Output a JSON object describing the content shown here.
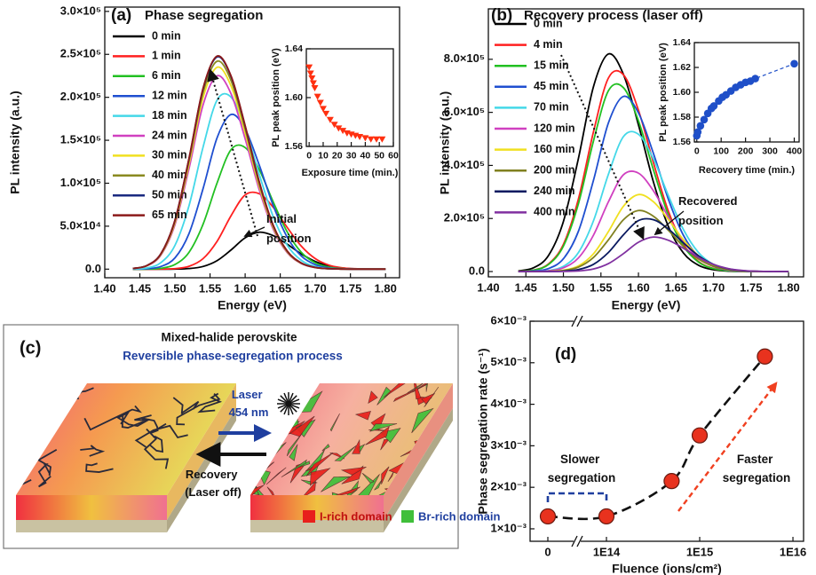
{
  "chart_data": [
    {
      "type": "line",
      "label": "(a)",
      "title": "Phase segregation",
      "xlabel": "Energy (eV)",
      "ylabel": "PL intensity (a.u.)",
      "x": [
        1.44,
        1.46,
        1.48,
        1.5,
        1.52,
        1.54,
        1.56,
        1.58,
        1.6,
        1.62,
        1.64,
        1.66,
        1.68,
        1.7,
        1.72,
        1.74,
        1.76,
        1.78,
        1.8
      ],
      "xlim": [
        1.4,
        1.82
      ],
      "xticks": [
        {
          "value": 1.4,
          "label": "1.40"
        },
        1.45,
        {
          "value": 1.5,
          "label": "1.50"
        },
        1.55,
        {
          "value": 1.6,
          "label": "1.60"
        },
        1.65,
        {
          "value": 1.7,
          "label": "1.70"
        },
        1.75,
        {
          "value": 1.8,
          "label": "1.80"
        }
      ],
      "ylim": [
        -10000,
        305000
      ],
      "yticks": [
        {
          "value": 0,
          "label": "0.0"
        },
        {
          "value": 50000,
          "label": "5.0×10⁴"
        },
        {
          "value": 100000,
          "label": "1.0×10⁵"
        },
        {
          "value": 150000,
          "label": "1.5×10⁵"
        },
        {
          "value": 200000,
          "label": "2.0×10⁵"
        },
        {
          "value": 250000,
          "label": "2.5×10⁵"
        },
        {
          "value": 300000,
          "label": "3.0×10⁵"
        }
      ],
      "legend": "upper left",
      "annotation": "Initial position",
      "series": [
        {
          "name": "0 min",
          "color": "#000000",
          "values": [
            0,
            0,
            0,
            100,
            700,
            3100,
            9900,
            22400,
            36500,
            43000,
            39000,
            29000,
            17700,
            8900,
            3700,
            1200,
            300,
            100,
            0
          ]
        },
        {
          "name": "1 min",
          "color": "#ff2020",
          "values": [
            0,
            0,
            100,
            600,
            3300,
            12200,
            32400,
            62300,
            86400,
            87800,
            72000,
            48500,
            26800,
            12200,
            4500,
            1400,
            400,
            100,
            0
          ]
        },
        {
          "name": "6 min",
          "color": "#22c022",
          "values": [
            0,
            100,
            1000,
            5400,
            19600,
            52200,
            100300,
            139200,
            141500,
            116000,
            78200,
            43200,
            19600,
            7300,
            2200,
            600,
            100,
            0,
            0
          ]
        },
        {
          "name": "12 min",
          "color": "#1f4fd0",
          "values": [
            100,
            500,
            3100,
            13100,
            41400,
            93600,
            152800,
            180000,
            163100,
            121300,
            74000,
            37100,
            15300,
            5200,
            1400,
            400,
            100,
            0,
            0
          ]
        },
        {
          "name": "18 min",
          "color": "#44d8e8",
          "values": [
            200,
            1400,
            7600,
            27700,
            73800,
            141900,
            196800,
            200100,
            164000,
            110500,
            61100,
            27700,
            10300,
            3100,
            800,
            200,
            0,
            0,
            0
          ]
        },
        {
          "name": "24 min",
          "color": "#d040c0",
          "values": [
            700,
            3800,
            16400,
            51800,
            117000,
            191000,
            225000,
            203900,
            151700,
            92500,
            46400,
            19100,
            6500,
            1800,
            500,
            100,
            0,
            0,
            0
          ]
        },
        {
          "name": "30 min",
          "color": "#f0e020",
          "values": [
            700,
            4000,
            17100,
            54100,
            122200,
            199500,
            235000,
            213000,
            158400,
            96600,
            48500,
            20000,
            6800,
            1900,
            500,
            100,
            0,
            0,
            0
          ]
        },
        {
          "name": "40 min",
          "color": "#8a8a20",
          "values": [
            800,
            4100,
            17600,
            55700,
            125800,
            205400,
            242000,
            219300,
            163200,
            99500,
            49900,
            20500,
            7000,
            1900,
            500,
            100,
            0,
            0,
            0
          ]
        },
        {
          "name": "50 min",
          "color": "#1a2a80",
          "values": [
            800,
            4200,
            18000,
            56900,
            128400,
            209700,
            247000,
            223800,
            166500,
            101500,
            50900,
            21000,
            7100,
            2000,
            500,
            100,
            0,
            0,
            0
          ]
        },
        {
          "name": "65 min",
          "color": "#8b1a1a",
          "values": [
            800,
            4200,
            18100,
            57100,
            129000,
            210500,
            248000,
            224700,
            167200,
            102000,
            51100,
            21100,
            7200,
            2000,
            600,
            100,
            0,
            0,
            0
          ]
        }
      ]
    },
    {
      "type": "scatter",
      "xlabel": "Exposure time (min.)",
      "ylabel": "PL peak position (eV)",
      "marker": "triangle",
      "color": "#ff3010",
      "x": [
        0,
        1,
        2,
        3,
        4,
        6,
        8,
        10,
        12,
        15,
        18,
        21,
        24,
        27,
        30,
        33,
        36,
        40,
        44,
        48,
        52
      ],
      "values": [
        1.625,
        1.62,
        1.616,
        1.612,
        1.608,
        1.601,
        1.596,
        1.591,
        1.587,
        1.582,
        1.578,
        1.575,
        1.573,
        1.571,
        1.57,
        1.569,
        1.568,
        1.567,
        1.566,
        1.566,
        1.566
      ],
      "xlim": [
        -2,
        60
      ],
      "xticks": [
        0,
        10,
        20,
        30,
        40,
        50,
        60
      ],
      "ylim": [
        1.56,
        1.64
      ],
      "yticks": [
        1.56,
        {
          "value": 1.6,
          "label": "1.60"
        },
        1.64
      ]
    },
    {
      "type": "line",
      "label": "(b)",
      "title": "Recovery process (laser off)",
      "xlabel": "Energy (eV)",
      "ylabel": "PL intensity (a.u.)",
      "x": [
        1.44,
        1.46,
        1.48,
        1.5,
        1.52,
        1.54,
        1.56,
        1.58,
        1.6,
        1.62,
        1.64,
        1.66,
        1.68,
        1.7,
        1.72,
        1.74,
        1.76,
        1.78,
        1.8
      ],
      "xlim": [
        1.4,
        1.82
      ],
      "xticks": [
        {
          "value": 1.4,
          "label": "1.40"
        },
        1.45,
        {
          "value": 1.5,
          "label": "1.50"
        },
        1.55,
        {
          "value": 1.6,
          "label": "1.60"
        },
        1.65,
        {
          "value": 1.7,
          "label": "1.70"
        },
        1.75,
        {
          "value": 1.8,
          "label": "1.80"
        }
      ],
      "ylim": [
        -20000,
        990000
      ],
      "yticks": [
        {
          "value": 0,
          "label": "0.0"
        },
        {
          "value": 200000,
          "label": "2.0×10⁵"
        },
        {
          "value": 400000,
          "label": "4.0×10⁵"
        },
        {
          "value": 600000,
          "label": "6.0×10⁵"
        },
        {
          "value": 800000,
          "label": "8.0×10⁵"
        }
      ],
      "legend": "upper left",
      "annotation": "Recovered position",
      "series": [
        {
          "name": "0 min",
          "color": "#000000",
          "values": [
            2500,
            13900,
            59900,
            188600,
            426400,
            696200,
            820000,
            742900,
            552700,
            337000,
            168900,
            69700,
            23800,
            6600,
            1600,
            400,
            0,
            0,
            0
          ]
        },
        {
          "name": "4 min",
          "color": "#ff2020",
          "values": [
            800,
            5300,
            28100,
            102600,
            273600,
            525900,
            729600,
            741800,
            608000,
            409600,
            226500,
            102600,
            38000,
            11400,
            3000,
            800,
            0,
            0,
            0
          ]
        },
        {
          "name": "15 min",
          "color": "#22c022",
          "values": [
            700,
            5000,
            26300,
            95800,
            255600,
            491300,
            681600,
            693000,
            568000,
            382700,
            211600,
            95800,
            35500,
            10700,
            2800,
            700,
            0,
            0,
            0
          ]
        },
        {
          "name": "45 min",
          "color": "#1f4fd0",
          "values": [
            200,
            2000,
            11200,
            48200,
            151800,
            343200,
            560300,
            660000,
            598000,
            444800,
            271300,
            136000,
            56100,
            19100,
            5300,
            1300,
            300,
            0,
            0
          ]
        },
        {
          "name": "70 min",
          "color": "#44d8e8",
          "values": [
            200,
            500,
            3700,
            19600,
            71600,
            190800,
            366800,
            508800,
            517300,
            424000,
            285700,
            157900,
            71600,
            26500,
            8000,
            2100,
            500,
            0,
            0
          ]
        },
        {
          "name": "120 min",
          "color": "#d040c0",
          "values": [
            100,
            400,
            2700,
            14100,
            51300,
            136800,
            263000,
            364800,
            370900,
            304000,
            204800,
            113200,
            51300,
            19000,
            5700,
            1500,
            400,
            0,
            0
          ]
        },
        {
          "name": "160 min",
          "color": "#f0e020",
          "values": [
            0,
            100,
            900,
            4900,
            21200,
            66700,
            150800,
            246200,
            290000,
            262700,
            195500,
            119200,
            59700,
            24700,
            8400,
            2300,
            600,
            100,
            0
          ]
        },
        {
          "name": "200 min",
          "color": "#808020",
          "values": [
            0,
            100,
            700,
            3900,
            16800,
            52900,
            119600,
            195300,
            230000,
            208400,
            155000,
            94500,
            47400,
            19600,
            6700,
            1800,
            500,
            100,
            0
          ]
        },
        {
          "name": "240 min",
          "color": "#0a1a60",
          "values": [
            0,
            0,
            200,
            1400,
            7400,
            27000,
            72000,
            138400,
            192000,
            195200,
            160000,
            107800,
            59600,
            27000,
            10000,
            3000,
            800,
            200,
            0
          ]
        },
        {
          "name": "400 min",
          "color": "#8030a0",
          "values": [
            0,
            0,
            0,
            400,
            2200,
            9500,
            29900,
            67600,
            110400,
            130000,
            117800,
            87600,
            53400,
            26800,
            11100,
            3800,
            1000,
            300,
            0
          ]
        }
      ]
    },
    {
      "type": "scatter",
      "xlabel": "Recovery time (min.)",
      "ylabel": "PL peak position (eV)",
      "marker": "circle",
      "color": "#1f4fc8",
      "line": "dashed",
      "x": [
        0,
        4,
        15,
        30,
        45,
        60,
        70,
        90,
        105,
        120,
        140,
        160,
        180,
        200,
        220,
        240,
        400
      ],
      "values": [
        1.565,
        1.568,
        1.573,
        1.578,
        1.583,
        1.587,
        1.589,
        1.593,
        1.596,
        1.598,
        1.601,
        1.604,
        1.606,
        1.608,
        1.609,
        1.611,
        1.623
      ],
      "xlim": [
        -10,
        420
      ],
      "xticks": [
        0,
        100,
        200,
        300,
        400
      ],
      "ylim": [
        1.56,
        1.64
      ],
      "yticks": [
        1.56,
        1.58,
        {
          "value": 1.6,
          "label": "1.60"
        },
        1.62,
        1.64
      ]
    },
    {
      "type": "scatter",
      "label": "(d)",
      "xlabel": "Fluence (ions/cm²)",
      "ylabel": "Phase segregation rate (s⁻¹)",
      "marker": "circle",
      "color": "#e8321e",
      "line": "dashed",
      "xscale": "log",
      "xbreak": true,
      "x": [
        0,
        100000000000000.0,
        500000000000000.0,
        1000000000000000.0,
        5000000000000000.0
      ],
      "values": [
        0.0013,
        0.0013,
        0.00215,
        0.00325,
        0.00515
      ],
      "xlim": [
        0,
        1.3e+16
      ],
      "xticks": [
        0,
        {
          "value": 100000000000000.0,
          "label": "1E14"
        },
        {
          "value": 1000000000000000.0,
          "label": "1E15"
        },
        {
          "value": 1e+16,
          "label": "1E16"
        }
      ],
      "ylim": [
        0.0007,
        0.006
      ],
      "yticks": [
        {
          "value": 0.001,
          "label": "1×10⁻³"
        },
        {
          "value": 0.002,
          "label": "2×10⁻³"
        },
        {
          "value": 0.003,
          "label": "3×10⁻³"
        },
        {
          "value": 0.004,
          "label": "4×10⁻³"
        },
        {
          "value": 0.005,
          "label": "5×10⁻³"
        },
        {
          "value": 0.006,
          "label": "6×10⁻³"
        }
      ],
      "annotations": [
        "Slower segregation",
        "Faster segregation"
      ]
    }
  ],
  "diagram": {
    "label": "(c)",
    "title": "Mixed-halide perovskite",
    "subtitle": "Reversible phase-segregation process",
    "laser": "Laser 454 nm",
    "recovery": "Recovery (Laser off)",
    "legend": [
      "I-rich domain",
      "Br-rich domain"
    ]
  }
}
